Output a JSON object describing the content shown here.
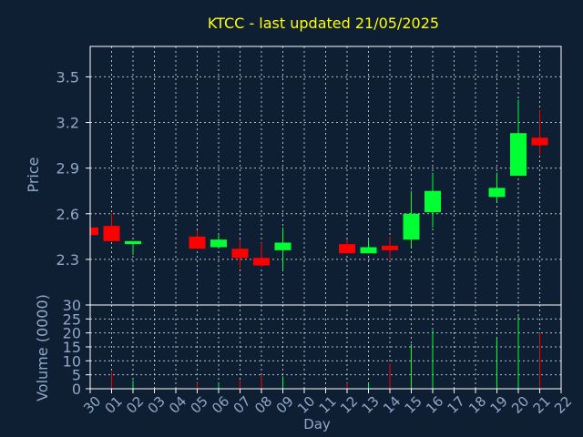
{
  "colors": {
    "background": "#0f1f33",
    "axis": "#ffffff",
    "grid": "#ffffff",
    "tick_label": "#8fa8c8",
    "title": "#ffff00",
    "up": "#00ff33",
    "down": "#ff0000"
  },
  "chart_data": [
    {
      "type": "candlestick",
      "title": "KTCC - last updated 21/05/2025",
      "xlabel": "",
      "ylabel": "Price",
      "grid": true,
      "ylim": [
        2.0,
        3.7
      ],
      "yticks": [
        "2.3",
        "2.6",
        "2.9",
        "3.2",
        "3.5"
      ],
      "x": [
        "30",
        "01",
        "02",
        "03",
        "04",
        "05",
        "06",
        "07",
        "08",
        "09",
        "10",
        "11",
        "12",
        "13",
        "14",
        "15",
        "16",
        "17",
        "18",
        "19",
        "20",
        "21",
        "22"
      ],
      "candles": [
        {
          "day": "30",
          "open": 2.51,
          "close": 2.46,
          "high": 2.51,
          "low": 2.46
        },
        {
          "day": "01",
          "open": 2.52,
          "close": 2.42,
          "high": 2.6,
          "low": 2.42
        },
        {
          "day": "02",
          "open": 2.4,
          "close": 2.42,
          "high": 2.42,
          "low": 2.33
        },
        {
          "day": "05",
          "open": 2.45,
          "close": 2.37,
          "high": 2.49,
          "low": 2.37
        },
        {
          "day": "06",
          "open": 2.38,
          "close": 2.43,
          "high": 2.46,
          "low": 2.38
        },
        {
          "day": "07",
          "open": 2.37,
          "close": 2.31,
          "high": 2.43,
          "low": 2.24
        },
        {
          "day": "08",
          "open": 2.31,
          "close": 2.26,
          "high": 2.41,
          "low": 2.25
        },
        {
          "day": "09",
          "open": 2.36,
          "close": 2.41,
          "high": 2.51,
          "low": 2.23
        },
        {
          "day": "12",
          "open": 2.4,
          "close": 2.34,
          "high": 2.43,
          "low": 2.34
        },
        {
          "day": "13",
          "open": 2.34,
          "close": 2.38,
          "high": 2.43,
          "low": 2.34
        },
        {
          "day": "14",
          "open": 2.39,
          "close": 2.36,
          "high": 2.45,
          "low": 2.3
        },
        {
          "day": "15",
          "open": 2.43,
          "close": 2.6,
          "high": 2.75,
          "low": 2.38
        },
        {
          "day": "16",
          "open": 2.61,
          "close": 2.75,
          "high": 2.87,
          "low": 2.51
        },
        {
          "day": "19",
          "open": 2.71,
          "close": 2.77,
          "high": 2.87,
          "low": 2.68
        },
        {
          "day": "20",
          "open": 2.85,
          "close": 3.13,
          "high": 3.35,
          "low": 2.85
        },
        {
          "day": "21",
          "open": 3.1,
          "close": 3.05,
          "high": 3.28,
          "low": 2.99
        }
      ]
    },
    {
      "type": "bar",
      "xlabel": "Day",
      "ylabel": "Volume (0000)",
      "grid": true,
      "ylim": [
        0,
        30
      ],
      "yticks": [
        "0",
        "5",
        "10",
        "15",
        "20",
        "25",
        "30"
      ],
      "x": [
        "30",
        "01",
        "02",
        "03",
        "04",
        "05",
        "06",
        "07",
        "08",
        "09",
        "10",
        "11",
        "12",
        "13",
        "14",
        "15",
        "16",
        "17",
        "18",
        "19",
        "20",
        "21",
        "22"
      ],
      "bars": [
        {
          "day": "01",
          "value": 6,
          "dir": "down"
        },
        {
          "day": "02",
          "value": 3,
          "dir": "up"
        },
        {
          "day": "05",
          "value": 2,
          "dir": "down"
        },
        {
          "day": "06",
          "value": 2,
          "dir": "up"
        },
        {
          "day": "07",
          "value": 3,
          "dir": "down"
        },
        {
          "day": "08",
          "value": 5,
          "dir": "down"
        },
        {
          "day": "09",
          "value": 4.5,
          "dir": "up"
        },
        {
          "day": "12",
          "value": 2,
          "dir": "down"
        },
        {
          "day": "13",
          "value": 2,
          "dir": "up"
        },
        {
          "day": "14",
          "value": 9,
          "dir": "down"
        },
        {
          "day": "15",
          "value": 16,
          "dir": "up"
        },
        {
          "day": "16",
          "value": 21,
          "dir": "up"
        },
        {
          "day": "19",
          "value": 18.5,
          "dir": "up"
        },
        {
          "day": "20",
          "value": 26,
          "dir": "up"
        },
        {
          "day": "21",
          "value": 20,
          "dir": "down"
        }
      ]
    }
  ]
}
